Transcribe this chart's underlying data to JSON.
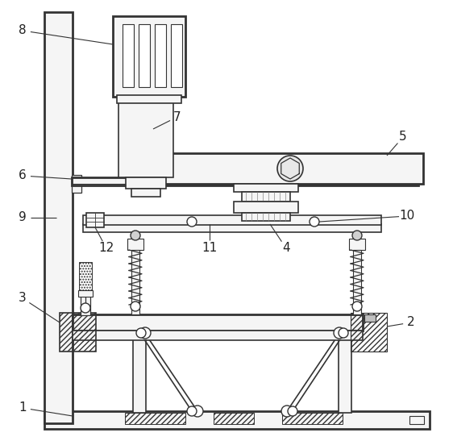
{
  "bg_color": "#ffffff",
  "line_color": "#333333",
  "label_color": "#222222",
  "line_width": 1.2,
  "thick_line": 2.0,
  "border_color": "#333333"
}
